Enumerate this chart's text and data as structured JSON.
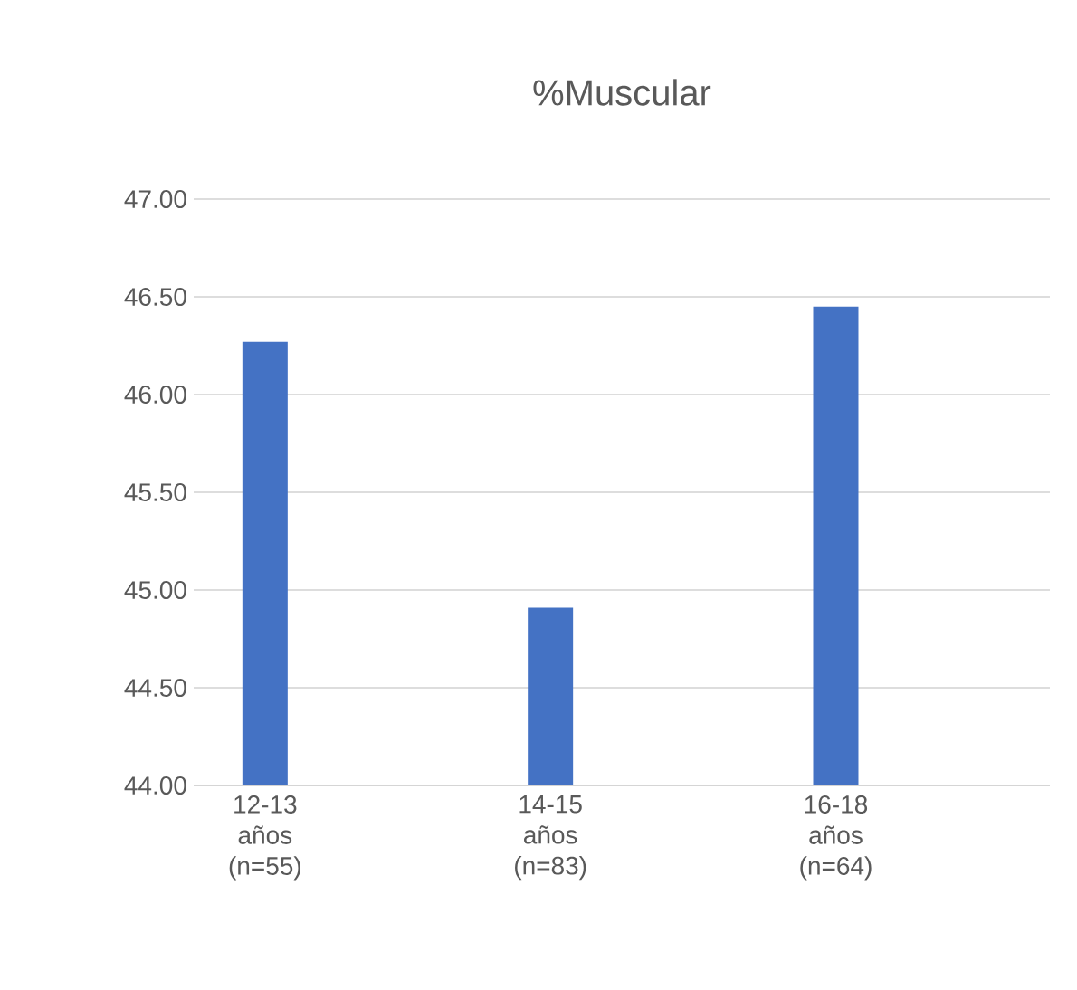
{
  "chart_data": {
    "type": "bar",
    "title": "%Muscular",
    "categories": [
      "12-13 años (n=55)",
      "14-15 años (n=83)",
      "16-18 años (n=64)"
    ],
    "values": [
      46.27,
      44.91,
      46.45
    ],
    "color": "#4472c4",
    "ylim": [
      44,
      47
    ],
    "yticks": [
      {
        "value": 44,
        "label": "44.00"
      },
      {
        "value": 44.5,
        "label": "44.50"
      },
      {
        "value": 45,
        "label": "45.00"
      },
      {
        "value": 45.5,
        "label": "45.50"
      },
      {
        "value": 46,
        "label": "46.00"
      },
      {
        "value": 46.5,
        "label": "46.50"
      },
      {
        "value": 47,
        "label": "47.00"
      }
    ],
    "grid": "y"
  }
}
